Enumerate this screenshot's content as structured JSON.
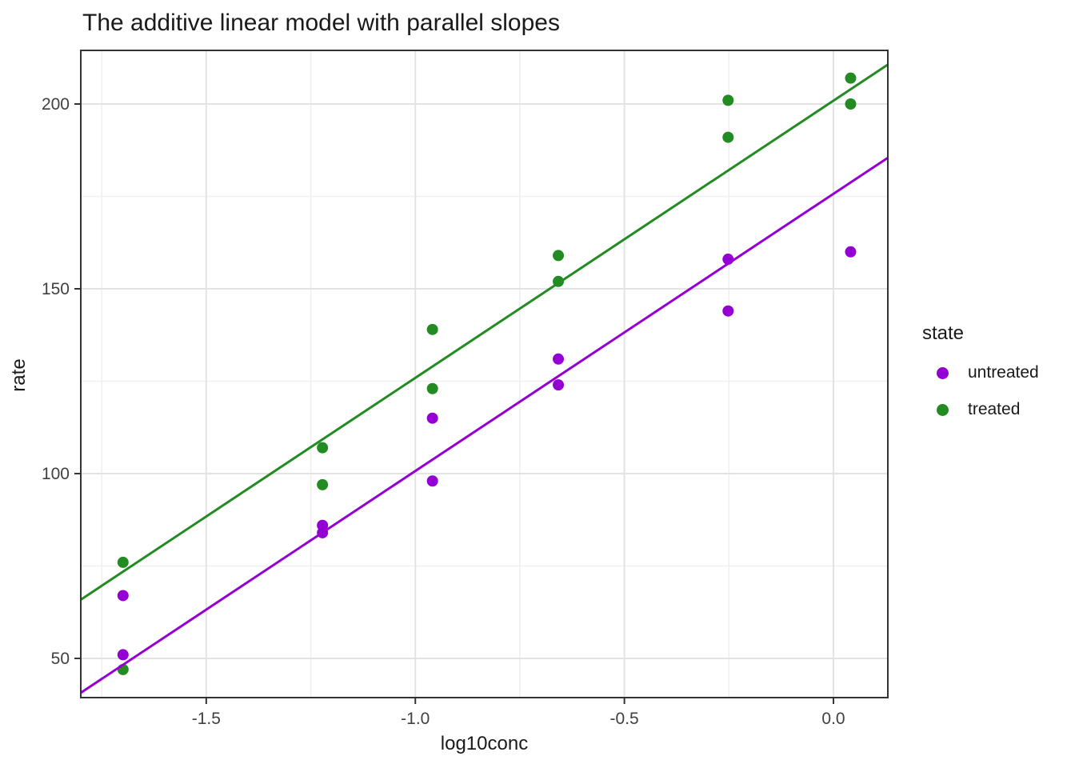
{
  "title": "The additive linear model with parallel slopes",
  "axes": {
    "x_label": "log10conc",
    "y_label": "rate"
  },
  "legend": {
    "title": "state",
    "items": [
      {
        "label": "untreated",
        "color": "#9400D3"
      },
      {
        "label": "treated",
        "color": "#228B22"
      }
    ]
  },
  "style": {
    "grid_major_color": "#e3e3e3",
    "grid_minor_color": "#efefef",
    "panel_border_color": "#333333",
    "tick_color": "#333333",
    "axis_text_color": "#404040",
    "background": "#ffffff"
  },
  "chart_data": {
    "type": "scatter",
    "title": "The additive linear model with parallel slopes",
    "xlabel": "log10conc",
    "ylabel": "rate",
    "xlim": [
      -1.8,
      0.13
    ],
    "ylim": [
      39.4,
      214.5
    ],
    "grid": true,
    "legend_position": "right",
    "x_ticks": {
      "values": [
        -1.5,
        -1.0,
        -0.5,
        0.0
      ],
      "labels": [
        "-1.5",
        "-1.0",
        "-0.5",
        "0.0"
      ]
    },
    "y_ticks": {
      "values": [
        50,
        100,
        150,
        200
      ],
      "labels": [
        "50",
        "100",
        "150",
        "200"
      ]
    },
    "x_minor": [
      -1.75,
      -1.25,
      -0.75,
      -0.25
    ],
    "y_minor": [
      75,
      125,
      175
    ],
    "series": [
      {
        "name": "untreated",
        "color": "#9400D3",
        "points": [
          [
            -1.699,
            67
          ],
          [
            -1.699,
            51
          ],
          [
            -1.222,
            84
          ],
          [
            -1.222,
            86
          ],
          [
            -0.959,
            98
          ],
          [
            -0.959,
            115
          ],
          [
            -0.658,
            131
          ],
          [
            -0.658,
            124
          ],
          [
            -0.252,
            144
          ],
          [
            -0.252,
            158
          ],
          [
            0.041,
            160
          ]
        ],
        "fit_line": {
          "slope": 75.0,
          "intercept": 175.7
        }
      },
      {
        "name": "treated",
        "color": "#228B22",
        "points": [
          [
            -1.699,
            76
          ],
          [
            -1.699,
            47
          ],
          [
            -1.222,
            97
          ],
          [
            -1.222,
            107
          ],
          [
            -0.959,
            123
          ],
          [
            -0.959,
            139
          ],
          [
            -0.658,
            159
          ],
          [
            -0.658,
            152
          ],
          [
            -0.252,
            191
          ],
          [
            -0.252,
            201
          ],
          [
            0.041,
            207
          ],
          [
            0.041,
            200
          ]
        ],
        "fit_line": {
          "slope": 75.0,
          "intercept": 200.9
        }
      }
    ]
  }
}
